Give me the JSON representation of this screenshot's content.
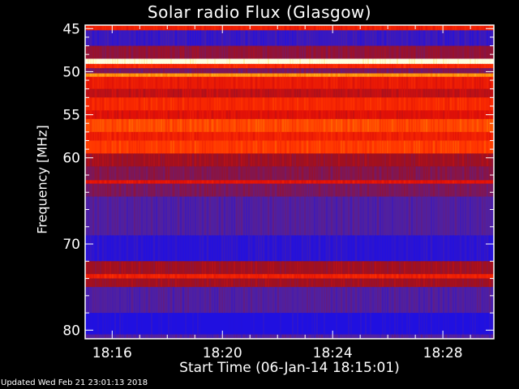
{
  "chart_data": {
    "type": "heatmap",
    "title": "Solar radio Flux (Glasgow)",
    "xlabel": "Start Time (06-Jan-14 18:15:01)",
    "ylabel": "Frequency [MHz]",
    "footer": "Updated Wed Feb 21 23:01:13 2018",
    "xlim_minutes_after_1815": [
      0.02,
      14.85
    ],
    "x_ticks": [
      {
        "label": "18:16",
        "minute": 1
      },
      {
        "label": "18:20",
        "minute": 5
      },
      {
        "label": "18:24",
        "minute": 9
      },
      {
        "label": "18:28",
        "minute": 13
      }
    ],
    "ylim": [
      44.6,
      81
    ],
    "y_inverted": true,
    "y_ticks": [
      45,
      50,
      55,
      60,
      70,
      80
    ],
    "colormap": [
      "#2010e0",
      "#5020a0",
      "#a01020",
      "#e01008",
      "#ff3000",
      "#ff8000",
      "#ffe040",
      "#ffffe0"
    ],
    "frequency_profile": [
      {
        "from": 44.6,
        "to": 45.2,
        "level": 0.6
      },
      {
        "from": 45.2,
        "to": 47.0,
        "level": 0.25
      },
      {
        "from": 47.0,
        "to": 48.5,
        "level": 0.42
      },
      {
        "from": 48.5,
        "to": 49.1,
        "level": 1.0
      },
      {
        "from": 49.1,
        "to": 49.6,
        "level": 0.62
      },
      {
        "from": 49.6,
        "to": 50.2,
        "level": 0.38
      },
      {
        "from": 50.2,
        "to": 50.6,
        "level": 0.78
      },
      {
        "from": 50.6,
        "to": 52.0,
        "level": 0.58
      },
      {
        "from": 52.0,
        "to": 53.0,
        "level": 0.5
      },
      {
        "from": 53.0,
        "to": 54.5,
        "level": 0.62
      },
      {
        "from": 54.5,
        "to": 55.5,
        "level": 0.55
      },
      {
        "from": 55.5,
        "to": 57.0,
        "level": 0.68
      },
      {
        "from": 57.0,
        "to": 58.0,
        "level": 0.6
      },
      {
        "from": 58.0,
        "to": 59.5,
        "level": 0.66
      },
      {
        "from": 59.5,
        "to": 61.0,
        "level": 0.45
      },
      {
        "from": 61.0,
        "to": 62.6,
        "level": 0.4
      },
      {
        "from": 62.6,
        "to": 63.0,
        "level": 0.56
      },
      {
        "from": 63.0,
        "to": 64.5,
        "level": 0.38
      },
      {
        "from": 64.5,
        "to": 69.0,
        "level": 0.3
      },
      {
        "from": 69.0,
        "to": 72.0,
        "level": 0.22
      },
      {
        "from": 72.0,
        "to": 73.5,
        "level": 0.45
      },
      {
        "from": 73.5,
        "to": 74.0,
        "level": 0.6
      },
      {
        "from": 74.0,
        "to": 75.0,
        "level": 0.45
      },
      {
        "from": 75.0,
        "to": 78.0,
        "level": 0.3
      },
      {
        "from": 78.0,
        "to": 80.5,
        "level": 0.2
      },
      {
        "from": 80.5,
        "to": 81.0,
        "level": 0.3
      }
    ]
  }
}
